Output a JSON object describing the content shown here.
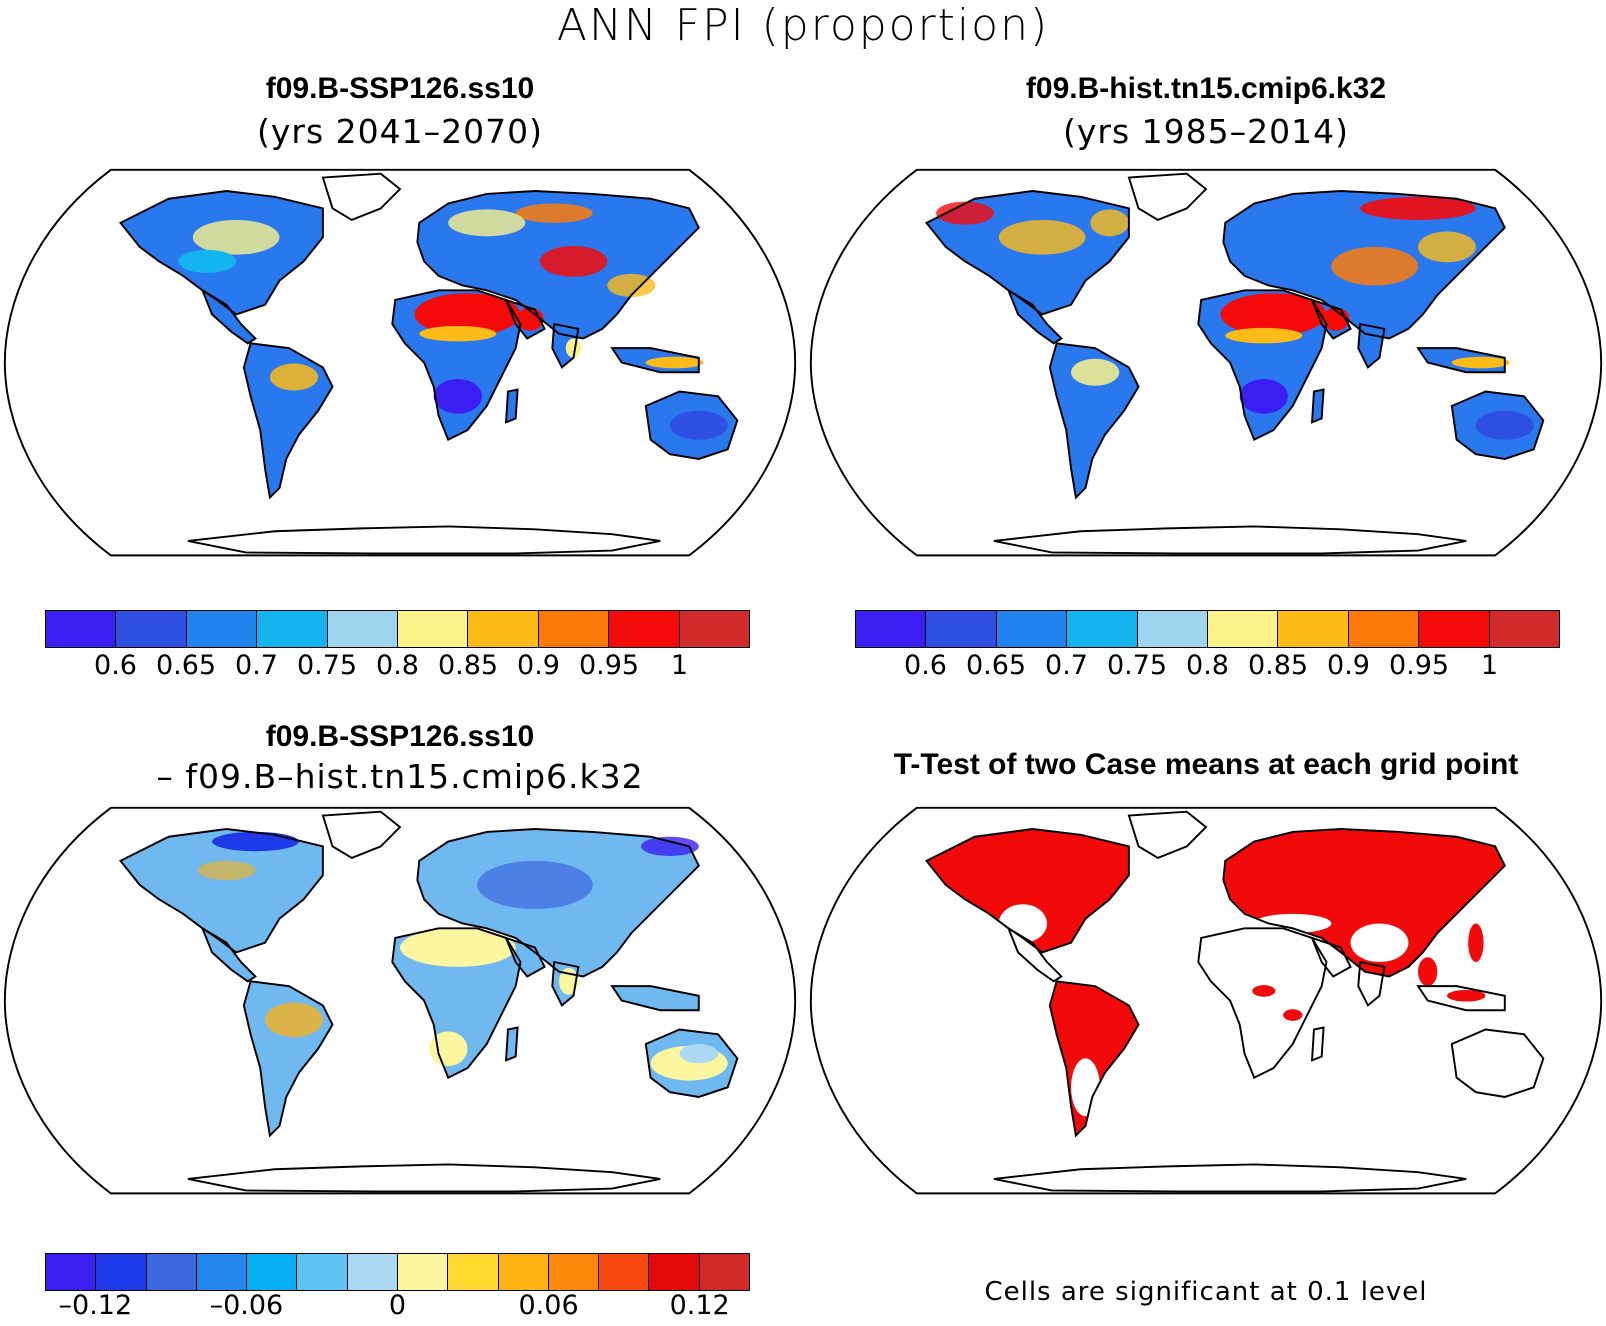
{
  "title": "ANN FPI (proportion)",
  "panels": [
    {
      "id": "future",
      "title": "f09.B-SSP126.ss10",
      "subtitle": "(yrs 2041–2070)",
      "palette": "abs"
    },
    {
      "id": "historical",
      "title": "f09.B-hist.tn15.cmip6.k32",
      "subtitle": "(yrs 1985–2014)",
      "palette": "abs"
    },
    {
      "id": "difference",
      "title": "f09.B-SSP126.ss10",
      "subtitle": "– f09.B–hist.tn15.cmip6.k32",
      "palette": "diff"
    },
    {
      "id": "ttest",
      "title": "T-Test of two Case means at each grid point",
      "subtitle": "",
      "palette": "sig"
    }
  ],
  "colorbars": {
    "abs": {
      "colors": [
        "#3a1ef2",
        "#2f4fe0",
        "#2383ee",
        "#14b4f0",
        "#9fd4ef",
        "#fbf38a",
        "#fdbb18",
        "#fb7a0a",
        "#f50a0a",
        "#d02a2a"
      ],
      "labels": [
        "0.6",
        "0.65",
        "0.7",
        "0.75",
        "0.8",
        "0.85",
        "0.9",
        "0.95",
        "1"
      ]
    },
    "diff": {
      "colors": [
        "#3a1ef2",
        "#1e3ae8",
        "#3e68de",
        "#2387ee",
        "#06aef2",
        "#5cc3f2",
        "#abd9f1",
        "#fdf6a0",
        "#fddb30",
        "#fcb210",
        "#fb8a0a",
        "#f64a12",
        "#e20a0a",
        "#d02a2a"
      ],
      "labels": [
        "–0.12",
        "–0.06",
        "0",
        "0.06",
        "0.12"
      ]
    }
  },
  "significance_note": "Cells are significant at 0.1 level",
  "legend_colors": {
    "land_fill_future": "#2a78ee",
    "land_fill_hist": "#2a78ee",
    "land_fill_diff": "#6fb8f0",
    "desert_red": "#f50a0a",
    "significant": "#f20a0a"
  }
}
